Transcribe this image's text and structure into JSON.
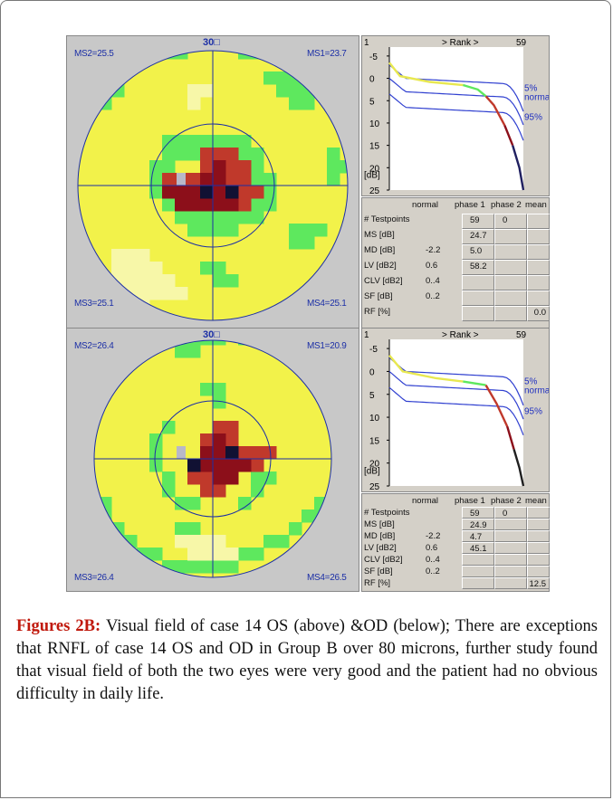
{
  "figures": [
    {
      "field": {
        "top_label": "30",
        "ms1": "MS1=23.7",
        "ms2": "MS2=25.5",
        "ms3": "MS3=25.1",
        "ms4": "MS4=25.1"
      },
      "rank": {
        "left": "1",
        "title": "> Rank >",
        "right": "59"
      },
      "axis": {
        "ticks": [
          "-5",
          "0",
          "5",
          "10",
          "15",
          "20",
          "25"
        ],
        "unit": "[dB]"
      },
      "curve_labels": {
        "p5": "5%",
        "normal": "normal",
        "p95": "95%"
      },
      "table": {
        "headers": [
          "normal",
          "phase 1",
          "phase 2",
          "mean"
        ],
        "rows": [
          {
            "label": "# Testpoints",
            "normal": "",
            "phase1": "59",
            "phase2": "0",
            "mean": ""
          },
          {
            "label": "MS [dB]",
            "normal": "",
            "phase1": "24.7",
            "phase2": "",
            "mean": ""
          },
          {
            "label": "MD [dB]",
            "normal": "-2.2",
            "phase1": "5.0",
            "phase2": "",
            "mean": ""
          },
          {
            "label": "LV [dB2]",
            "normal": "0.6",
            "phase1": "58.2",
            "phase2": "",
            "mean": ""
          },
          {
            "label": "CLV [dB2]",
            "normal": "0..4",
            "phase1": "",
            "phase2": "",
            "mean": ""
          },
          {
            "label": "SF [dB]",
            "normal": "0..2",
            "phase1": "",
            "phase2": "",
            "mean": ""
          },
          {
            "label": "RF [%]",
            "normal": "",
            "phase1": "",
            "phase2": "",
            "mean": "0.0"
          }
        ]
      }
    },
    {
      "field": {
        "top_label": "30",
        "ms1": "MS1=20.9",
        "ms2": "MS2=26.4",
        "ms3": "MS3=26.4",
        "ms4": "MS4=26.5"
      },
      "rank": {
        "left": "1",
        "title": "> Rank >",
        "right": "59"
      },
      "axis": {
        "ticks": [
          "-5",
          "0",
          "5",
          "10",
          "15",
          "20",
          "25"
        ],
        "unit": "[dB]"
      },
      "curve_labels": {
        "p5": "5%",
        "normal": "normal",
        "p95": "95%"
      },
      "table": {
        "headers": [
          "normal",
          "phase 1",
          "phase 2",
          "mean"
        ],
        "rows": [
          {
            "label": "# Testpoints",
            "normal": "",
            "phase1": "59",
            "phase2": "0",
            "mean": ""
          },
          {
            "label": "MS [dB]",
            "normal": "",
            "phase1": "24.9",
            "phase2": "",
            "mean": ""
          },
          {
            "label": "MD [dB]",
            "normal": "-2.2",
            "phase1": "4.7",
            "phase2": "",
            "mean": ""
          },
          {
            "label": "LV [dB2]",
            "normal": "0.6",
            "phase1": "45.1",
            "phase2": "",
            "mean": ""
          },
          {
            "label": "CLV [dB2]",
            "normal": "0..4",
            "phase1": "",
            "phase2": "",
            "mean": ""
          },
          {
            "label": "SF [dB]",
            "normal": "0..2",
            "phase1": "",
            "phase2": "",
            "mean": ""
          },
          {
            "label": "RF [%]",
            "normal": "",
            "phase1": "",
            "phase2": "",
            "mean": "12.5"
          }
        ]
      }
    }
  ],
  "caption": {
    "label": "Figures 2B:",
    "text": " Visual field of case 14 OS (above) &OD (below); There are exceptions that RNFL of case 14 OS and OD in Group B over 80 microns, further study found that visual field of both the two eyes were very good and the patient had no obvious difficulty in daily life."
  },
  "colors": {
    "yellow": "#f2f24a",
    "green": "#5ee85e",
    "darkred": "#8c0f1a",
    "red": "#c0392b",
    "grey": "#c8c8c8",
    "blue": "#1c2fa6"
  }
}
